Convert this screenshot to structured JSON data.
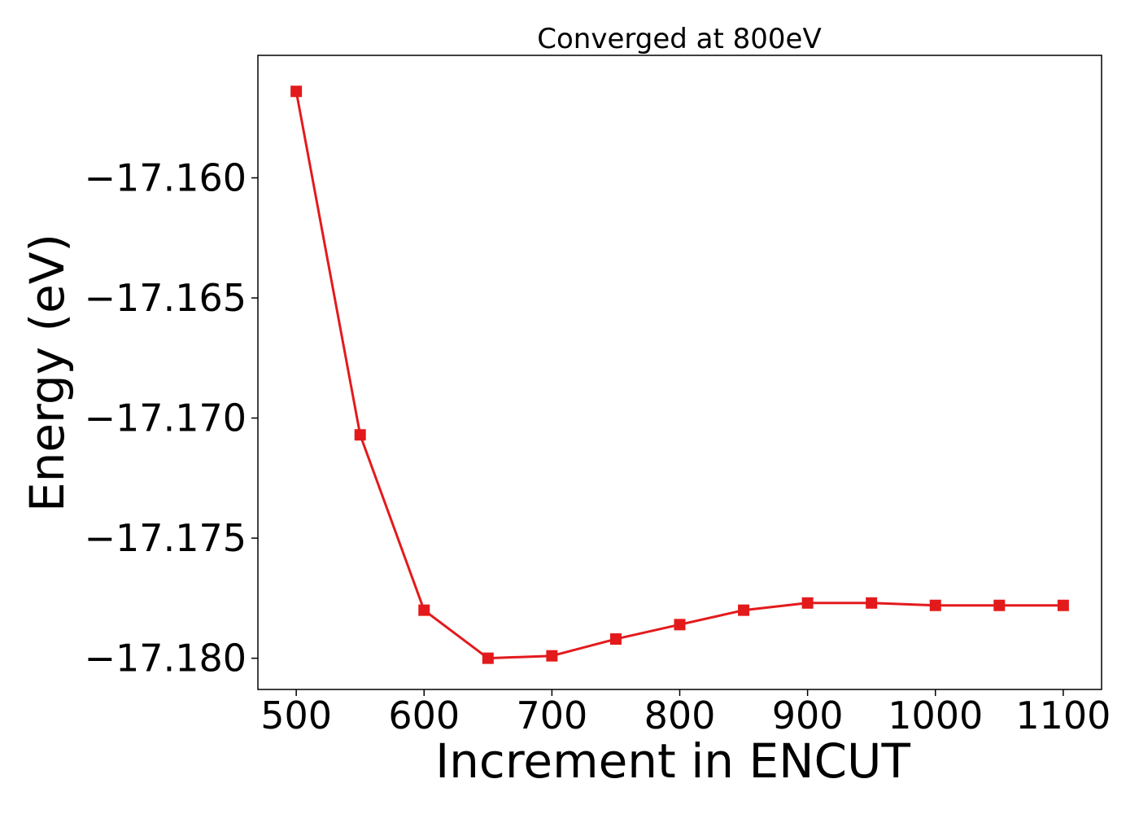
{
  "chart_data": {
    "type": "line",
    "title": "Converged at 800eV",
    "xlabel": "Increment in ENCUT",
    "ylabel": "Energy (eV)",
    "xlim": [
      470,
      1130
    ],
    "ylim": [
      -17.1813,
      -17.1549
    ],
    "x_ticks": [
      500,
      600,
      700,
      800,
      900,
      1000,
      1100
    ],
    "x_tick_labels": [
      "500",
      "600",
      "700",
      "800",
      "900",
      "1000",
      "1100"
    ],
    "y_ticks": [
      -17.16,
      -17.165,
      -17.17,
      -17.175,
      -17.18
    ],
    "y_tick_labels": [
      "−17.160",
      "−17.165",
      "−17.170",
      "−17.175",
      "−17.180"
    ],
    "grid": false,
    "series": [
      {
        "color": "#e31a1c",
        "marker": "square",
        "x": [
          500,
          550,
          600,
          650,
          700,
          750,
          800,
          850,
          900,
          950,
          1000,
          1050,
          1100
        ],
        "y": [
          -17.1564,
          -17.1707,
          -17.178,
          -17.18,
          -17.1799,
          -17.1792,
          -17.1786,
          -17.178,
          -17.1777,
          -17.1777,
          -17.1778,
          -17.1778,
          -17.1778
        ]
      }
    ]
  }
}
